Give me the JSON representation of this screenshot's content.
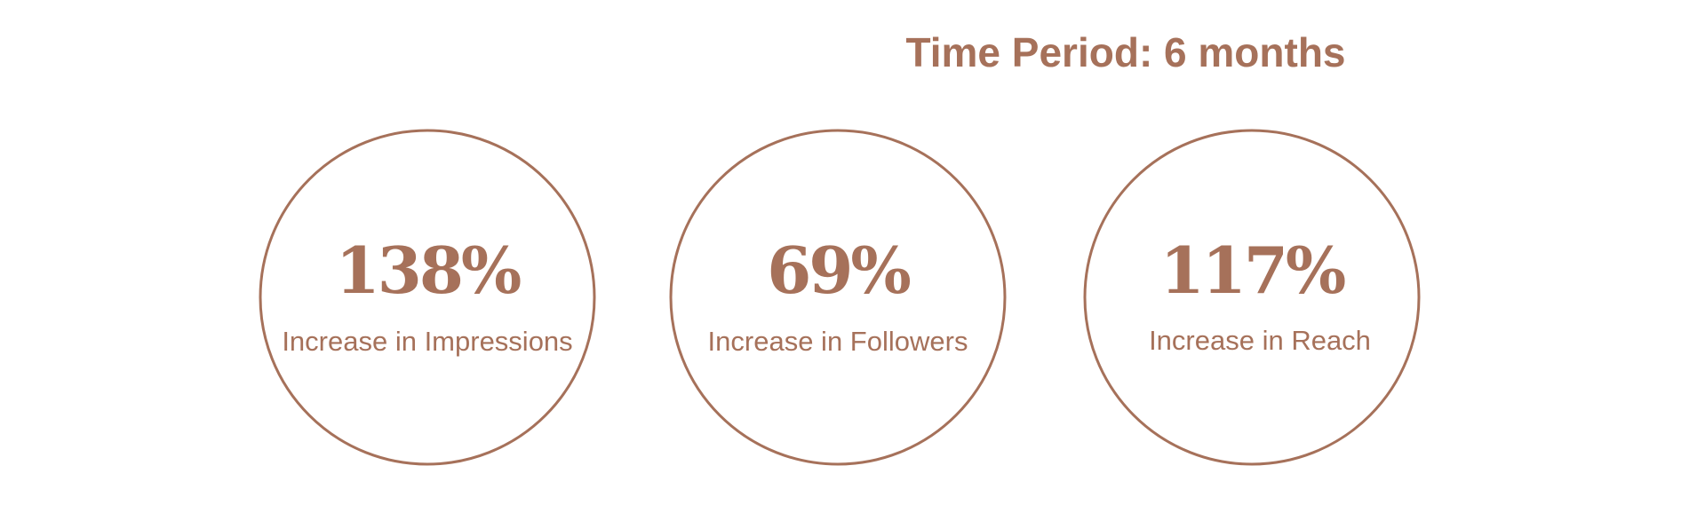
{
  "title": "Time Period: 6 months",
  "stats": [
    {
      "value": "138%",
      "label": "Increase in Impressions"
    },
    {
      "value": "69%",
      "label": "Increase in Followers"
    },
    {
      "value": "117%",
      "label": "Increase in Reach"
    }
  ]
}
